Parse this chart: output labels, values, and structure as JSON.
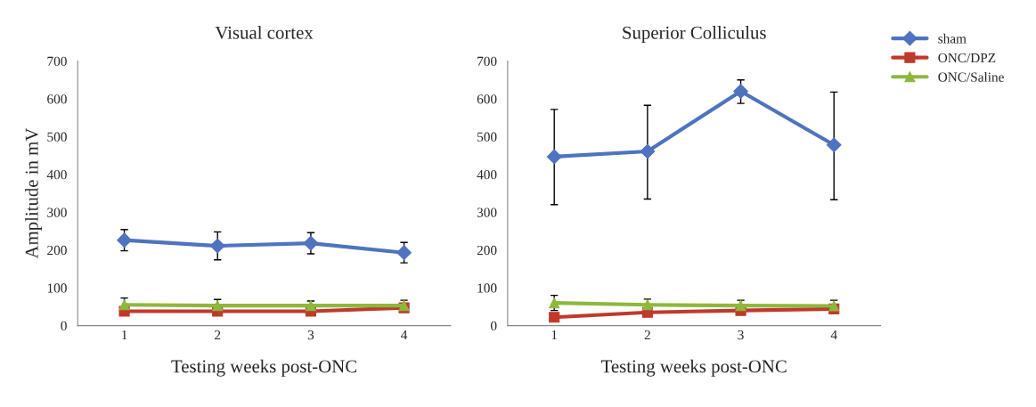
{
  "chart_data": [
    {
      "type": "line",
      "title": "Visual cortex",
      "xlabel": "Testing weeks post-ONC",
      "ylabel": "Amplitude in mV",
      "categories": [
        "1",
        "2",
        "3",
        "4"
      ],
      "ylim": [
        0,
        700
      ],
      "yticks": [
        0,
        100,
        200,
        300,
        400,
        500,
        600,
        700
      ],
      "grid": false,
      "legend": false,
      "series": [
        {
          "color": "#4f73be",
          "marker": "diamond",
          "values": [
            226,
            211,
            218,
            193
          ],
          "errors": [
            28,
            37,
            28,
            27
          ]
        },
        {
          "color": "#c0392b",
          "marker": "square",
          "values": [
            38,
            38,
            38,
            47
          ],
          "errors": [
            null,
            null,
            null,
            null
          ]
        },
        {
          "color": "#8db83c",
          "marker": "triangle",
          "values": [
            55,
            53,
            53,
            53
          ],
          "errors": [
            18,
            16,
            12,
            14
          ]
        }
      ]
    },
    {
      "type": "line",
      "title": "Superior Colliculus",
      "xlabel": "Testing weeks post-ONC",
      "categories": [
        "1",
        "2",
        "3",
        "4"
      ],
      "ylim": [
        0,
        700
      ],
      "yticks": [
        0,
        100,
        200,
        300,
        400,
        500,
        600,
        700
      ],
      "grid": false,
      "legend": "top right",
      "series": [
        {
          "name": "sham",
          "color": "#4f73be",
          "marker": "diamond",
          "values": [
            447,
            461,
            620,
            478
          ],
          "errors": [
            [
              320,
              572
            ],
            [
              335,
              583
            ],
            [
              588,
              650
            ],
            [
              333,
              618
            ]
          ]
        },
        {
          "name": "ONC/DPZ",
          "color": "#c0392b",
          "marker": "square",
          "values": [
            22,
            35,
            40,
            44
          ],
          "errors": [
            null,
            null,
            null,
            null
          ]
        },
        {
          "name": "ONC/Saline",
          "color": "#8db83c",
          "marker": "triangle",
          "values": [
            60,
            55,
            53,
            52
          ],
          "errors": [
            20,
            15,
            14,
            15
          ]
        }
      ]
    }
  ]
}
